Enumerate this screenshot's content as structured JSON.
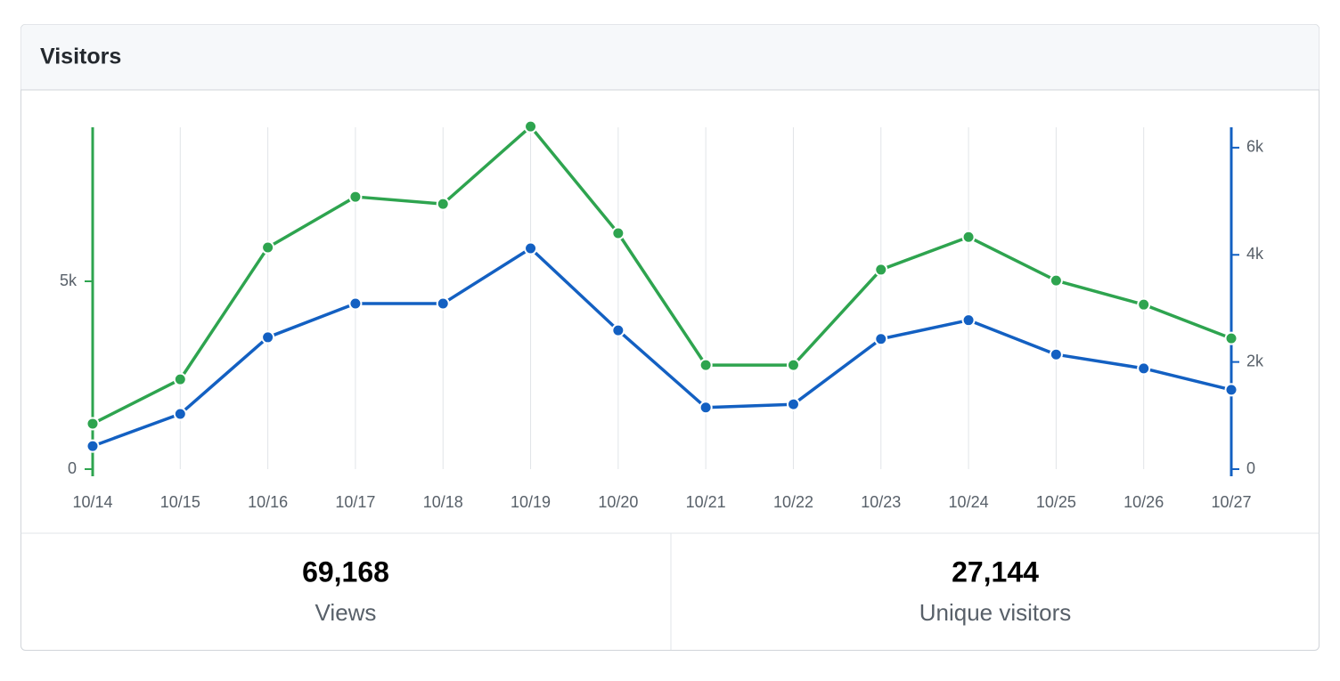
{
  "header": {
    "title": "Visitors"
  },
  "chart_data": {
    "type": "line",
    "categories": [
      "10/14",
      "10/15",
      "10/16",
      "10/17",
      "10/18",
      "10/19",
      "10/20",
      "10/21",
      "10/22",
      "10/23",
      "10/24",
      "10/25",
      "10/26",
      "10/27"
    ],
    "series": [
      {
        "name": "Views",
        "color": "#2ea44f",
        "axis": "y",
        "total": "69,168",
        "values": [
          1210,
          2390,
          5900,
          7250,
          7060,
          9120,
          6280,
          2770,
          2770,
          5310,
          6180,
          5020,
          4380,
          3480
        ]
      },
      {
        "name": "Unique visitors",
        "color": "#1360c2",
        "axis": "y2",
        "total": "27,144",
        "values": [
          430,
          1030,
          2460,
          3090,
          3090,
          4120,
          2590,
          1150,
          1210,
          2430,
          2780,
          2140,
          1880,
          1480
        ]
      }
    ],
    "ylim": [
      0,
      9100
    ],
    "yticks": [
      0,
      {
        "value": 5000,
        "label": "5k"
      }
    ],
    "y2lim": [
      0,
      6380
    ],
    "y2ticks": [
      0,
      {
        "value": 2000,
        "label": "2k"
      },
      {
        "value": 4000,
        "label": "4k"
      },
      {
        "value": 6000,
        "label": "6k"
      }
    ],
    "grid": true
  }
}
